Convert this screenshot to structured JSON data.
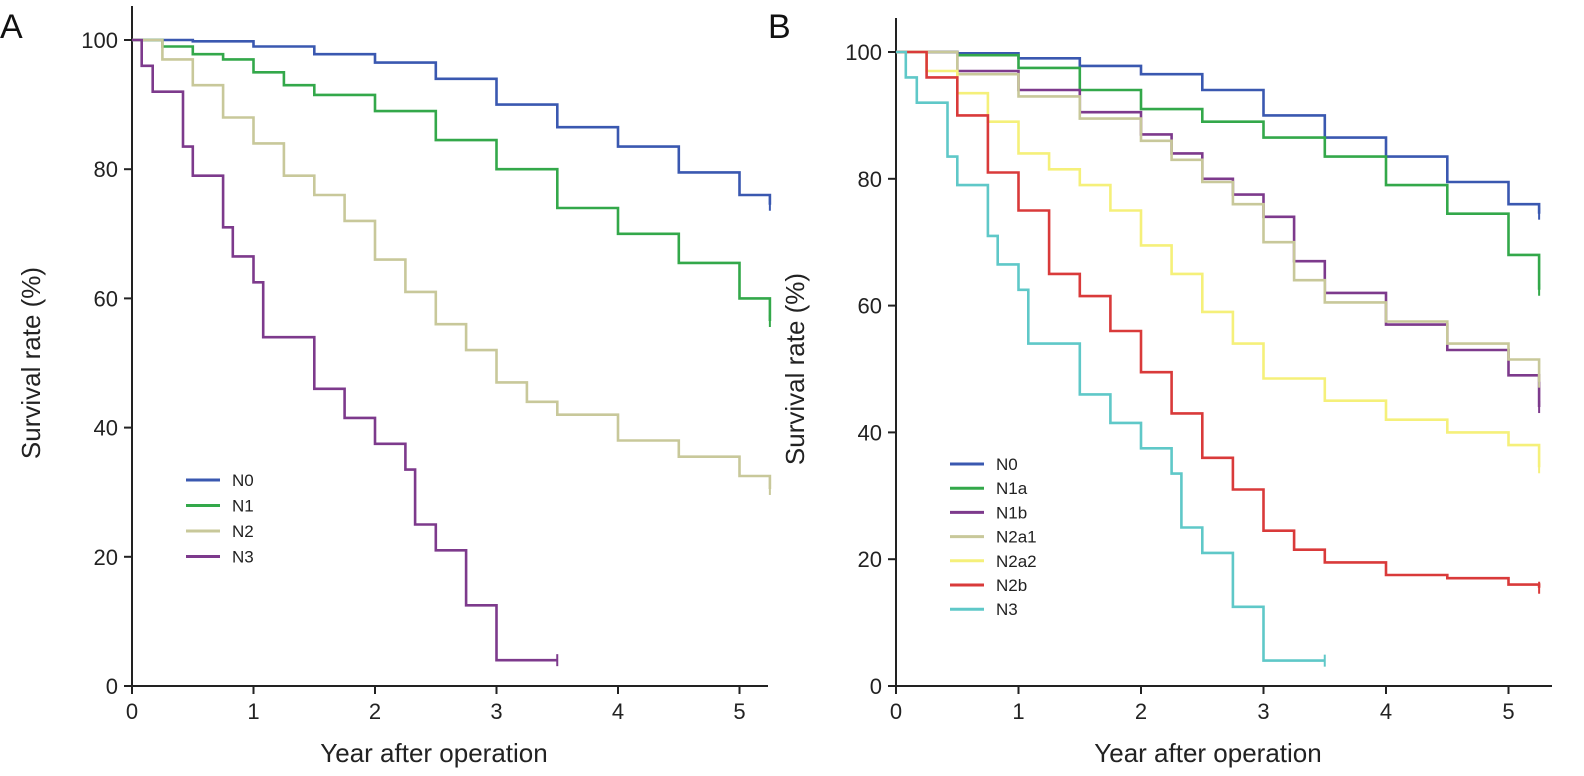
{
  "chart_data": [
    {
      "type": "line",
      "panel": "A",
      "xlabel": "Year after operation",
      "ylabel": "Survival rate (%)",
      "xlim": [
        0,
        5.25
      ],
      "ylim": [
        0,
        100
      ],
      "xticks": [
        "0",
        "1",
        "2",
        "3",
        "4",
        "5"
      ],
      "yticks": [
        "0",
        "20",
        "40",
        "60",
        "80",
        "100"
      ],
      "grid": false,
      "legend_position": "lower-left",
      "series": [
        {
          "name": "N0",
          "color": "#3a58b0",
          "x": [
            0,
            0.5,
            1,
            1.5,
            2,
            2.5,
            3,
            3.5,
            4,
            4.5,
            5,
            5.25
          ],
          "y": [
            100,
            99.8,
            99,
            97.8,
            96.5,
            94,
            90,
            86.5,
            83.5,
            79.5,
            76,
            74.5
          ]
        },
        {
          "name": "N1",
          "color": "#33a84a",
          "x": [
            0,
            0.25,
            0.5,
            0.75,
            1,
            1.25,
            1.5,
            2,
            2.5,
            3,
            3.5,
            4,
            4.5,
            5,
            5.25
          ],
          "y": [
            100,
            99,
            97.8,
            97,
            95,
            93,
            91.5,
            89,
            84.5,
            80,
            74,
            70,
            65.5,
            60,
            56.5
          ]
        },
        {
          "name": "N2",
          "color": "#c8c89a",
          "x": [
            0,
            0.25,
            0.5,
            0.75,
            1,
            1.25,
            1.5,
            1.75,
            2,
            2.25,
            2.5,
            2.75,
            3,
            3.25,
            3.5,
            4,
            4.5,
            5,
            5.25
          ],
          "y": [
            100,
            97,
            93,
            88,
            84,
            79,
            76,
            72,
            66,
            61,
            56,
            52,
            47,
            44,
            42,
            38,
            35.5,
            32.5,
            30.5
          ]
        },
        {
          "name": "N3",
          "color": "#7d3a8c",
          "x": [
            0,
            0.08,
            0.17,
            0.42,
            0.5,
            0.75,
            0.83,
            1,
            1.08,
            1.5,
            1.75,
            2,
            2.25,
            2.33,
            2.5,
            2.75,
            3,
            3.5
          ],
          "y": [
            100,
            96,
            92,
            83.5,
            79,
            71,
            66.5,
            62.5,
            54,
            46,
            41.5,
            37.5,
            33.5,
            25,
            21,
            12.5,
            4,
            4
          ]
        }
      ]
    },
    {
      "type": "line",
      "panel": "B",
      "xlabel": "Year after operation",
      "ylabel": "Survival rate (%)",
      "xlim": [
        0,
        5.25
      ],
      "ylim": [
        0,
        100
      ],
      "xticks": [
        "0",
        "1",
        "2",
        "3",
        "4",
        "5"
      ],
      "yticks": [
        "0",
        "20",
        "40",
        "60",
        "80",
        "100"
      ],
      "grid": false,
      "legend_position": "lower-left",
      "series": [
        {
          "name": "N0",
          "color": "#3a58b0",
          "x": [
            0,
            0.5,
            1,
            1.5,
            2,
            2.5,
            3,
            3.5,
            4,
            4.5,
            5,
            5.25
          ],
          "y": [
            100,
            99.8,
            99,
            97.8,
            96.5,
            94,
            90,
            86.5,
            83.5,
            79.5,
            76,
            74.5
          ]
        },
        {
          "name": "N1a",
          "color": "#33a84a",
          "x": [
            0,
            0.5,
            1,
            1.5,
            2,
            2.5,
            3,
            3.5,
            4,
            4.5,
            5,
            5.25
          ],
          "y": [
            100,
            99.5,
            97.5,
            94,
            91,
            89,
            86.5,
            83.5,
            79,
            74.5,
            68,
            62.5
          ]
        },
        {
          "name": "N1b",
          "color": "#7d3a8c",
          "x": [
            0,
            0.5,
            1,
            1.5,
            2,
            2.25,
            2.5,
            2.75,
            3,
            3.25,
            3.5,
            4,
            4.5,
            5,
            5.25
          ],
          "y": [
            100,
            97,
            94,
            90.5,
            87,
            84,
            80,
            77.5,
            74,
            67,
            62,
            57,
            53,
            49,
            44
          ]
        },
        {
          "name": "N2a1",
          "color": "#c8c89a",
          "x": [
            0,
            0.5,
            1,
            1.5,
            2,
            2.25,
            2.5,
            2.75,
            3,
            3.25,
            3.5,
            4,
            4.5,
            5,
            5.25
          ],
          "y": [
            100,
            96.5,
            93,
            89.5,
            86,
            83,
            79.5,
            76,
            70,
            64,
            60.5,
            57.5,
            54,
            51.5,
            48
          ]
        },
        {
          "name": "N2a2",
          "color": "#f5f07a",
          "x": [
            0,
            0.25,
            0.5,
            0.75,
            1,
            1.25,
            1.5,
            1.75,
            2,
            2.25,
            2.5,
            2.75,
            3,
            3.5,
            4,
            4.5,
            5,
            5.25
          ],
          "y": [
            100,
            97,
            93.5,
            89,
            84,
            81.5,
            79,
            75,
            69.5,
            65,
            59,
            54,
            48.5,
            45,
            42,
            40,
            38,
            34.5
          ]
        },
        {
          "name": "N2b",
          "color": "#d93a3a",
          "x": [
            0,
            0.25,
            0.5,
            0.75,
            1,
            1.25,
            1.5,
            1.75,
            2,
            2.25,
            2.5,
            2.75,
            3,
            3.25,
            3.5,
            4,
            4.5,
            5,
            5.25
          ],
          "y": [
            100,
            96,
            90,
            81,
            75,
            65,
            61.5,
            56,
            49.5,
            43,
            36,
            31,
            24.5,
            21.5,
            19.5,
            17.5,
            17,
            16,
            15.5
          ]
        },
        {
          "name": "N3",
          "color": "#5fc8c8",
          "x": [
            0,
            0.08,
            0.17,
            0.42,
            0.5,
            0.75,
            0.83,
            1,
            1.08,
            1.5,
            1.75,
            2,
            2.25,
            2.33,
            2.5,
            2.75,
            3,
            3.5
          ],
          "y": [
            100,
            96,
            92,
            83.5,
            79,
            71,
            66.5,
            62.5,
            54,
            46,
            41.5,
            37.5,
            33.5,
            25,
            21,
            12.5,
            4,
            4
          ]
        }
      ]
    }
  ]
}
